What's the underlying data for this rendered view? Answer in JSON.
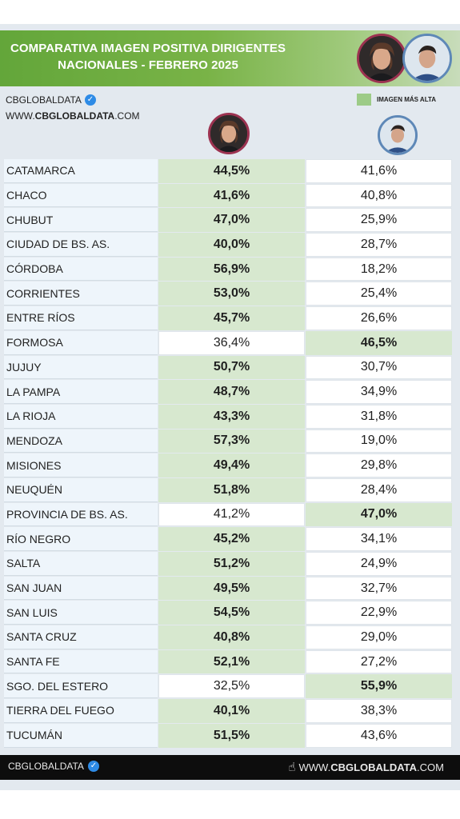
{
  "header": {
    "title_line1": "COMPARATIVA IMAGEN POSITIVA DIRIGENTES",
    "title_line2": "NACIONALES - FEBRERO 2025"
  },
  "brand": {
    "name": "CBGLOBALDATA",
    "site_prefix": "WWW.",
    "site_bold": "CBGLOBALDATA",
    "site_suffix": ".COM"
  },
  "legend": {
    "label": "IMAGEN MÁS ALTA",
    "color": "#9dcb87"
  },
  "colors": {
    "highlight": "#d7e8cf",
    "header_green": "#6fae3f",
    "milei_ring": "#9c3250",
    "kicillof_ring": "#5e88b7"
  },
  "footer": {
    "brand": "CBGLOBALDATA",
    "site_prefix": "WWW.",
    "site_bold": "CBGLOBALDATA",
    "site_suffix": ".COM"
  },
  "chart_data": {
    "type": "table",
    "title": "COMPARATIVA IMAGEN POSITIVA DIRIGENTES NACIONALES - FEBRERO 2025",
    "columns": [
      "",
      "",
      ""
    ],
    "rows": [
      {
        "province": "CATAMARCA",
        "a": "44,5%",
        "b": "41,6%",
        "higher": "a"
      },
      {
        "province": "CHACO",
        "a": "41,6%",
        "b": "40,8%",
        "higher": "a"
      },
      {
        "province": "CHUBUT",
        "a": "47,0%",
        "b": "25,9%",
        "higher": "a"
      },
      {
        "province": "CIUDAD DE BS. AS.",
        "a": "40,0%",
        "b": "28,7%",
        "higher": "a"
      },
      {
        "province": "CÓRDOBA",
        "a": "56,9%",
        "b": "18,2%",
        "higher": "a"
      },
      {
        "province": "CORRIENTES",
        "a": "53,0%",
        "b": "25,4%",
        "higher": "a"
      },
      {
        "province": "ENTRE RÍOS",
        "a": "45,7%",
        "b": "26,6%",
        "higher": "a"
      },
      {
        "province": "FORMOSA",
        "a": "36,4%",
        "b": "46,5%",
        "higher": "b"
      },
      {
        "province": "JUJUY",
        "a": "50,7%",
        "b": "30,7%",
        "higher": "a"
      },
      {
        "province": "LA PAMPA",
        "a": "48,7%",
        "b": "34,9%",
        "higher": "a"
      },
      {
        "province": "LA RIOJA",
        "a": "43,3%",
        "b": "31,8%",
        "higher": "a"
      },
      {
        "province": "MENDOZA",
        "a": "57,3%",
        "b": "19,0%",
        "higher": "a"
      },
      {
        "province": "MISIONES",
        "a": "49,4%",
        "b": "29,8%",
        "higher": "a"
      },
      {
        "province": "NEUQUÉN",
        "a": "51,8%",
        "b": "28,4%",
        "higher": "a"
      },
      {
        "province": "PROVINCIA DE BS. AS.",
        "a": "41,2%",
        "b": "47,0%",
        "higher": "b"
      },
      {
        "province": "RÍO NEGRO",
        "a": "45,2%",
        "b": "34,1%",
        "higher": "a"
      },
      {
        "province": "SALTA",
        "a": "51,2%",
        "b": "24,9%",
        "higher": "a"
      },
      {
        "province": "SAN JUAN",
        "a": "49,5%",
        "b": "32,7%",
        "higher": "a"
      },
      {
        "province": "SAN LUIS",
        "a": "54,5%",
        "b": "22,9%",
        "higher": "a"
      },
      {
        "province": "SANTA CRUZ",
        "a": "40,8%",
        "b": "29,0%",
        "higher": "a"
      },
      {
        "province": "SANTA FE",
        "a": "52,1%",
        "b": "27,2%",
        "higher": "a"
      },
      {
        "province": "SGO. DEL ESTERO",
        "a": "32,5%",
        "b": "55,9%",
        "higher": "b"
      },
      {
        "province": "TIERRA DEL FUEGO",
        "a": "40,1%",
        "b": "38,3%",
        "higher": "a"
      },
      {
        "province": "TUCUMÁN",
        "a": "51,5%",
        "b": "43,6%",
        "higher": "a"
      }
    ]
  }
}
